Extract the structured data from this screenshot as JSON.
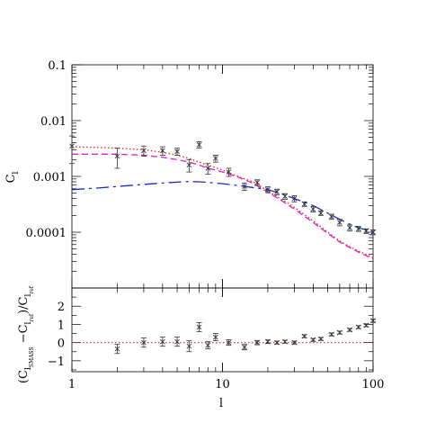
{
  "chart_data": [
    {
      "type": "line",
      "name": "upper",
      "xscale": "log",
      "yscale": "log",
      "xlim": [
        1,
        100
      ],
      "ylim": [
        1e-05,
        0.1
      ],
      "ylabel_main": "C",
      "ylabel_sub": "l",
      "yticklabels": [
        {
          "v": 0.1,
          "t": "0.1"
        },
        {
          "v": 0.01,
          "t": "0.01"
        },
        {
          "v": 0.001,
          "t": "0.001"
        },
        {
          "v": 0.0001,
          "t": "0.0001"
        }
      ],
      "colors": {
        "dotted": "#e2231a",
        "dashed": "#e020c8",
        "longdash": "#1a2ad0",
        "points": "#333333"
      },
      "series": [
        {
          "style": "dotted",
          "x": [
            1,
            1.5,
            2,
            3,
            4,
            5,
            6,
            7,
            8,
            10,
            13,
            16,
            20,
            25,
            30,
            40,
            50,
            60,
            70,
            80,
            90,
            100
          ],
          "y": [
            0.0034,
            0.0033,
            0.0032,
            0.003,
            0.0027,
            0.0024,
            0.0021,
            0.0018,
            0.0016,
            0.0013,
            0.00097,
            0.0008,
            0.00055,
            0.00038,
            0.00028,
            0.00016,
            0.0001,
            7e-05,
            5.5e-05,
            4.6e-05,
            4e-05,
            3.5e-05
          ]
        },
        {
          "style": "dashed",
          "x": [
            1,
            1.5,
            2,
            3,
            4,
            5,
            6,
            7,
            8,
            10,
            13,
            16,
            20,
            25,
            30,
            40,
            50,
            60,
            70,
            80,
            90,
            100
          ],
          "y": [
            0.0025,
            0.0025,
            0.0025,
            0.0024,
            0.0022,
            0.002,
            0.0018,
            0.0016,
            0.0014,
            0.0012,
            0.00095,
            0.00075,
            0.00052,
            0.00036,
            0.00026,
            0.00015,
            9.5e-05,
            6.7e-05,
            5.3e-05,
            4.4e-05,
            3.8e-05,
            3.3e-05
          ]
        },
        {
          "style": "longdash",
          "x": [
            1,
            1.5,
            2,
            3,
            4,
            5,
            6,
            7,
            8,
            10,
            13,
            16,
            20,
            25,
            30,
            40,
            50,
            60,
            70,
            80,
            90,
            100
          ],
          "y": [
            0.00058,
            0.00062,
            0.00066,
            0.00072,
            0.00076,
            0.00079,
            0.00081,
            0.0008,
            0.00078,
            0.00074,
            0.00068,
            0.00063,
            0.00058,
            0.00048,
            0.0004,
            0.0003,
            0.00022,
            0.00017,
            0.00014,
            0.00012,
            0.00011,
            9.7e-05
          ]
        }
      ],
      "points": {
        "x": [
          1,
          2,
          3,
          4,
          5,
          6,
          7,
          8,
          9,
          11,
          14,
          17,
          20,
          23,
          26,
          30,
          35,
          40,
          45,
          53,
          60,
          70,
          80,
          90,
          100
        ],
        "y": [
          0.0035,
          0.0023,
          0.0029,
          0.0029,
          0.0028,
          0.0016,
          0.0037,
          0.0014,
          0.0021,
          0.0012,
          0.00066,
          0.00078,
          0.00058,
          0.00053,
          0.00044,
          0.0004,
          0.00032,
          0.00026,
          0.00022,
          0.00019,
          0.00015,
          0.00012,
          0.000115,
          0.000105,
          0.0001
        ],
        "err": [
          0.0018,
          0.0009,
          0.0006,
          0.0005,
          0.0004,
          0.0004,
          0.0005,
          0.0003,
          0.0003,
          0.0002,
          0.0001,
          9e-05,
          7e-05,
          6e-05,
          5e-05,
          5e-05,
          3e-05,
          3e-05,
          2e-05,
          2e-05,
          2e-05,
          1.5e-05,
          1.2e-05,
          1e-05,
          1e-05
        ]
      }
    },
    {
      "type": "scatter",
      "name": "lower",
      "xscale": "log",
      "xlim": [
        1,
        100
      ],
      "ylim": [
        -1.6,
        3
      ],
      "yticklabels": [
        {
          "v": 2,
          "t": "2"
        },
        {
          "v": 1,
          "t": "1"
        },
        {
          "v": 0,
          "t": "0"
        },
        {
          "v": -1,
          "t": "−1"
        }
      ],
      "xticklabels": [
        {
          "v": 1,
          "t": "1"
        },
        {
          "v": 10,
          "t": "10"
        },
        {
          "v": 100,
          "t": "100"
        }
      ],
      "xlabel": "l",
      "ylabel": "(C",
      "ylabel_parts": [
        "(C",
        "l",
        "SMASS",
        " −C",
        "l",
        "ref",
        ")/C",
        "l",
        "ref"
      ],
      "reference_line": 0,
      "reference_color": "#e2231a",
      "points": {
        "x": [
          2,
          3,
          4,
          5,
          6,
          7,
          8,
          9,
          11,
          14,
          17,
          20,
          23,
          26,
          30,
          35,
          40,
          45,
          53,
          60,
          70,
          80,
          90,
          100
        ],
        "y": [
          -0.35,
          0.0,
          0.05,
          0.05,
          -0.2,
          0.85,
          -0.15,
          0.3,
          0.0,
          -0.25,
          0.0,
          0.05,
          0.0,
          0.05,
          0.0,
          0.35,
          0.15,
          0.2,
          0.45,
          0.55,
          0.7,
          0.85,
          0.95,
          1.2
        ],
        "err": [
          0.25,
          0.25,
          0.25,
          0.25,
          0.3,
          0.25,
          0.2,
          0.2,
          0.15,
          0.15,
          0.12,
          0.1,
          0.08,
          0.08,
          0.08,
          0.08,
          0.08,
          0.08,
          0.08,
          0.08,
          0.08,
          0.08,
          0.08,
          0.08
        ]
      }
    }
  ]
}
